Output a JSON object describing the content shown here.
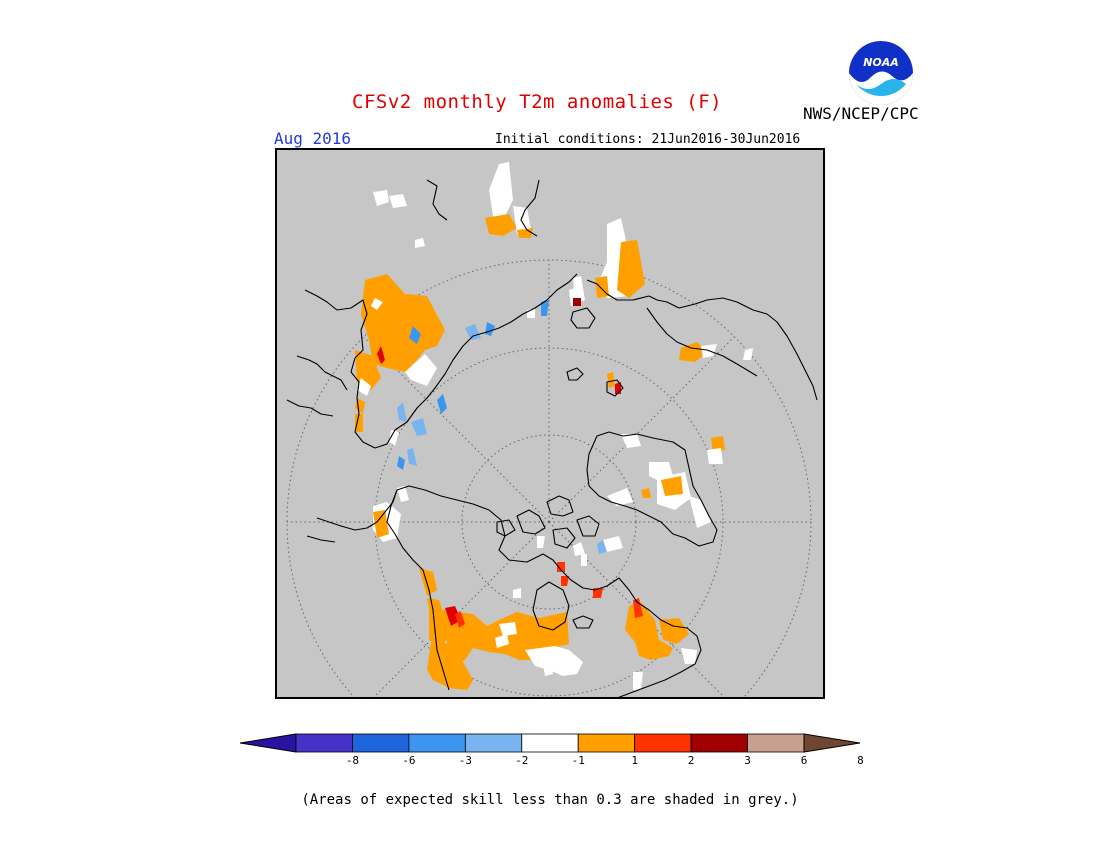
{
  "title": "CFSv2 monthly T2m anomalies (F)",
  "agency": "NWS/NCEP/CPC",
  "logo_text": "NOAA",
  "month": "Aug 2016",
  "initial_conditions": "Initial conditions: 21Jun2016-30Jun2016",
  "footnote": "(Areas of expected skill less than 0.3 are shaded in grey.)",
  "colors": {
    "grey_background": "#c6c6c6",
    "neutral": "#ffffff",
    "warm_1_2": "#ffa000",
    "warm_2_3": "#ff3200",
    "warm_3_6": "#a00000",
    "warm_6_8": "#c8a090",
    "cold_1_2": "#78b4f0",
    "cold_2_3": "#3c96f0",
    "title_red": "#e00000",
    "month_blue": "#1e3cd8"
  },
  "colorbar": {
    "colors": [
      "#2814a0",
      "#4632c8",
      "#1e64dc",
      "#3c96f0",
      "#78b4f0",
      "#ffffff",
      "#ffa000",
      "#ff3200",
      "#a00000",
      "#c8a090",
      "#6e4632"
    ],
    "labels": [
      "-8",
      "-6",
      "-3",
      "-2",
      "-1",
      "1",
      "2",
      "3",
      "6",
      "8"
    ]
  }
}
